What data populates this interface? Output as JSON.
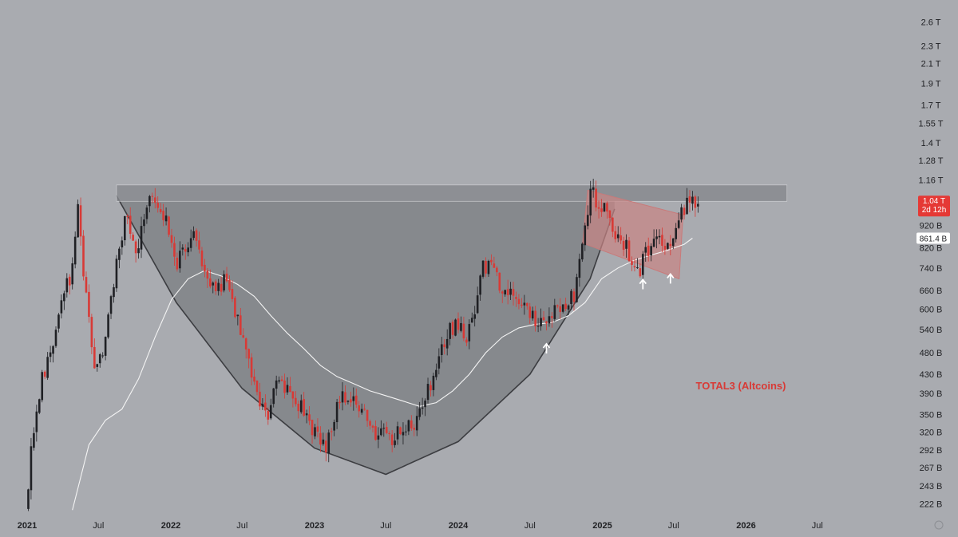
{
  "chart_data": {
    "type": "candlestick",
    "title": "TOTAL3 (Altcoins)",
    "y_scale": "log",
    "y_unit": "USD",
    "ylim": [
      210000000000,
      2700000000000
    ],
    "xlim": [
      "2021-01-01",
      "2026-12-31"
    ],
    "y_ticks": [
      {
        "label": "2.6 T",
        "value": 2600000000000
      },
      {
        "label": "2.3 T",
        "value": 2300000000000
      },
      {
        "label": "2.1 T",
        "value": 2100000000000
      },
      {
        "label": "1.9 T",
        "value": 1900000000000
      },
      {
        "label": "1.7 T",
        "value": 1700000000000
      },
      {
        "label": "1.55 T",
        "value": 1550000000000
      },
      {
        "label": "1.4 T",
        "value": 1400000000000
      },
      {
        "label": "1.28 T",
        "value": 1280000000000
      },
      {
        "label": "1.16 T",
        "value": 1160000000000
      },
      {
        "label": "920 B",
        "value": 920000000000
      },
      {
        "label": "820 B",
        "value": 820000000000
      },
      {
        "label": "740 B",
        "value": 740000000000
      },
      {
        "label": "660 B",
        "value": 660000000000
      },
      {
        "label": "600 B",
        "value": 600000000000
      },
      {
        "label": "540 B",
        "value": 540000000000
      },
      {
        "label": "480 B",
        "value": 480000000000
      },
      {
        "label": "430 B",
        "value": 430000000000
      },
      {
        "label": "390 B",
        "value": 390000000000
      },
      {
        "label": "350 B",
        "value": 350000000000
      },
      {
        "label": "320 B",
        "value": 320000000000
      },
      {
        "label": "292 B",
        "value": 292000000000
      },
      {
        "label": "267 B",
        "value": 267000000000
      },
      {
        "label": "243 B",
        "value": 243000000000
      },
      {
        "label": "222 B",
        "value": 222000000000
      }
    ],
    "x_ticks": [
      {
        "label": "2021",
        "date": "2021-01-01",
        "year": true
      },
      {
        "label": "Jul",
        "date": "2021-07-01",
        "year": false
      },
      {
        "label": "2022",
        "date": "2022-01-01",
        "year": true
      },
      {
        "label": "Jul",
        "date": "2022-07-01",
        "year": false
      },
      {
        "label": "2023",
        "date": "2023-01-01",
        "year": true
      },
      {
        "label": "Jul",
        "date": "2023-07-01",
        "year": false
      },
      {
        "label": "2024",
        "date": "2024-01-01",
        "year": true
      },
      {
        "label": "Jul",
        "date": "2024-07-01",
        "year": false
      },
      {
        "label": "2025",
        "date": "2025-01-01",
        "year": true
      },
      {
        "label": "Jul",
        "date": "2025-07-01",
        "year": false
      },
      {
        "label": "2026",
        "date": "2026-01-01",
        "year": true
      },
      {
        "label": "Jul",
        "date": "2026-07-01",
        "year": false
      }
    ],
    "last_price": {
      "label": "1.04 T",
      "countdown": "2d 12h",
      "value": 1040000000000
    },
    "ma_value": {
      "label": "861.4 B",
      "value": 861400000000
    },
    "price_path": [
      [
        "2021-01-04",
        215000000000
      ],
      [
        "2021-01-25",
        330000000000
      ],
      [
        "2021-02-15",
        420000000000
      ],
      [
        "2021-03-08",
        470000000000
      ],
      [
        "2021-04-05",
        620000000000
      ],
      [
        "2021-04-26",
        700000000000
      ],
      [
        "2021-05-17",
        980000000000
      ],
      [
        "2021-06-07",
        640000000000
      ],
      [
        "2021-06-28",
        440000000000
      ],
      [
        "2021-07-19",
        470000000000
      ],
      [
        "2021-08-09",
        640000000000
      ],
      [
        "2021-08-30",
        830000000000
      ],
      [
        "2021-09-20",
        1000000000000
      ],
      [
        "2021-10-11",
        780000000000
      ],
      [
        "2021-11-01",
        980000000000
      ],
      [
        "2021-11-22",
        1100000000000
      ],
      [
        "2021-12-13",
        980000000000
      ],
      [
        "2022-01-03",
        900000000000
      ],
      [
        "2022-01-24",
        760000000000
      ],
      [
        "2022-02-14",
        820000000000
      ],
      [
        "2022-03-07",
        880000000000
      ],
      [
        "2022-03-28",
        760000000000
      ],
      [
        "2022-04-18",
        700000000000
      ],
      [
        "2022-05-09",
        660000000000
      ],
      [
        "2022-05-30",
        720000000000
      ],
      [
        "2022-06-20",
        600000000000
      ],
      [
        "2022-07-11",
        500000000000
      ],
      [
        "2022-08-01",
        440000000000
      ],
      [
        "2022-08-22",
        360000000000
      ],
      [
        "2022-09-12",
        350000000000
      ],
      [
        "2022-10-03",
        420000000000
      ],
      [
        "2022-10-24",
        400000000000
      ],
      [
        "2022-11-14",
        370000000000
      ],
      [
        "2022-12-05",
        360000000000
      ],
      [
        "2022-12-26",
        340000000000
      ],
      [
        "2023-01-16",
        310000000000
      ],
      [
        "2023-02-06",
        300000000000
      ],
      [
        "2023-02-27",
        350000000000
      ],
      [
        "2023-03-20",
        390000000000
      ],
      [
        "2023-04-10",
        385000000000
      ],
      [
        "2023-05-01",
        360000000000
      ],
      [
        "2023-05-22",
        350000000000
      ],
      [
        "2023-06-12",
        320000000000
      ],
      [
        "2023-07-03",
        330000000000
      ],
      [
        "2023-07-24",
        310000000000
      ],
      [
        "2023-08-14",
        320000000000
      ],
      [
        "2023-09-04",
        330000000000
      ],
      [
        "2023-09-25",
        340000000000
      ],
      [
        "2023-10-16",
        380000000000
      ],
      [
        "2023-11-06",
        420000000000
      ],
      [
        "2023-11-27",
        480000000000
      ],
      [
        "2023-12-18",
        540000000000
      ],
      [
        "2024-01-08",
        560000000000
      ],
      [
        "2024-01-29",
        520000000000
      ],
      [
        "2024-02-19",
        600000000000
      ],
      [
        "2024-03-11",
        760000000000
      ],
      [
        "2024-04-01",
        730000000000
      ],
      [
        "2024-04-22",
        680000000000
      ],
      [
        "2024-05-13",
        660000000000
      ],
      [
        "2024-06-03",
        640000000000
      ],
      [
        "2024-06-24",
        620000000000
      ],
      [
        "2024-07-15",
        570000000000
      ],
      [
        "2024-08-05",
        560000000000
      ],
      [
        "2024-08-26",
        580000000000
      ],
      [
        "2024-09-16",
        600000000000
      ],
      [
        "2024-10-07",
        620000000000
      ],
      [
        "2024-10-28",
        640000000000
      ],
      [
        "2024-11-18",
        820000000000
      ],
      [
        "2024-12-09",
        1100000000000
      ],
      [
        "2024-12-30",
        1020000000000
      ],
      [
        "2025-01-20",
        1000000000000
      ],
      [
        "2025-02-10",
        880000000000
      ],
      [
        "2025-03-03",
        840000000000
      ],
      [
        "2025-03-24",
        780000000000
      ],
      [
        "2025-04-14",
        740000000000
      ],
      [
        "2025-05-05",
        820000000000
      ],
      [
        "2025-05-26",
        880000000000
      ],
      [
        "2025-06-16",
        840000000000
      ],
      [
        "2025-07-07",
        860000000000
      ],
      [
        "2025-07-28",
        980000000000
      ],
      [
        "2025-08-18",
        1040000000000
      ],
      [
        "2025-09-01",
        1040000000000
      ]
    ],
    "ma_path": [
      [
        "2021-04-26",
        215000000000
      ],
      [
        "2021-06-07",
        300000000000
      ],
      [
        "2021-07-19",
        340000000000
      ],
      [
        "2021-08-30",
        360000000000
      ],
      [
        "2021-10-11",
        420000000000
      ],
      [
        "2021-11-22",
        520000000000
      ],
      [
        "2022-01-03",
        630000000000
      ],
      [
        "2022-02-14",
        700000000000
      ],
      [
        "2022-03-28",
        730000000000
      ],
      [
        "2022-05-09",
        710000000000
      ],
      [
        "2022-06-20",
        680000000000
      ],
      [
        "2022-08-01",
        640000000000
      ],
      [
        "2022-09-12",
        580000000000
      ],
      [
        "2022-10-24",
        530000000000
      ],
      [
        "2022-12-05",
        490000000000
      ],
      [
        "2023-01-16",
        450000000000
      ],
      [
        "2023-02-27",
        425000000000
      ],
      [
        "2023-04-10",
        410000000000
      ],
      [
        "2023-05-22",
        395000000000
      ],
      [
        "2023-07-03",
        385000000000
      ],
      [
        "2023-08-14",
        375000000000
      ],
      [
        "2023-09-25",
        365000000000
      ],
      [
        "2023-11-06",
        372000000000
      ],
      [
        "2023-12-18",
        395000000000
      ],
      [
        "2024-01-29",
        430000000000
      ],
      [
        "2024-03-11",
        480000000000
      ],
      [
        "2024-04-22",
        520000000000
      ],
      [
        "2024-06-03",
        545000000000
      ],
      [
        "2024-07-15",
        555000000000
      ],
      [
        "2024-08-26",
        560000000000
      ],
      [
        "2024-10-07",
        580000000000
      ],
      [
        "2024-11-18",
        620000000000
      ],
      [
        "2024-12-30",
        700000000000
      ],
      [
        "2025-02-10",
        740000000000
      ],
      [
        "2025-03-24",
        770000000000
      ],
      [
        "2025-05-05",
        790000000000
      ],
      [
        "2025-06-16",
        810000000000
      ],
      [
        "2025-07-28",
        835000000000
      ],
      [
        "2025-08-18",
        861400000000
      ]
    ],
    "resistance_zone": {
      "start": "2021-08-16",
      "end": "2026-04-15",
      "low": 1040000000000,
      "high": 1130000000000
    },
    "bowl_curve": [
      [
        "2021-08-16",
        1070000000000
      ],
      [
        "2022-01-15",
        620000000000
      ],
      [
        "2022-07-01",
        400000000000
      ],
      [
        "2023-01-01",
        295000000000
      ],
      [
        "2023-07-01",
        258000000000
      ],
      [
        "2024-01-01",
        305000000000
      ],
      [
        "2024-07-01",
        430000000000
      ],
      [
        "2024-12-01",
        700000000000
      ],
      [
        "2025-02-01",
        1000000000000
      ]
    ],
    "descending_channel": [
      [
        "2024-11-25",
        1100000000000
      ],
      [
        "2025-07-25",
        970000000000
      ],
      [
        "2025-07-15",
        700000000000
      ],
      [
        "2024-11-12",
        840000000000
      ]
    ],
    "arrows": [
      {
        "date": "2024-08-12",
        "value": 490000000000
      },
      {
        "date": "2025-04-14",
        "value": 680000000000
      },
      {
        "date": "2025-06-23",
        "value": 700000000000
      }
    ],
    "colors": {
      "background": "#a9abb0",
      "bullish": "#1f2024",
      "bearish": "#d83a36",
      "moving_average": "#f4f4f4",
      "resistance_zone": "#86888d",
      "bowl_fill": "#7b7d82",
      "channel_fill": "#c98585",
      "price_tag": "#e53935",
      "title": "#d83a36"
    }
  }
}
